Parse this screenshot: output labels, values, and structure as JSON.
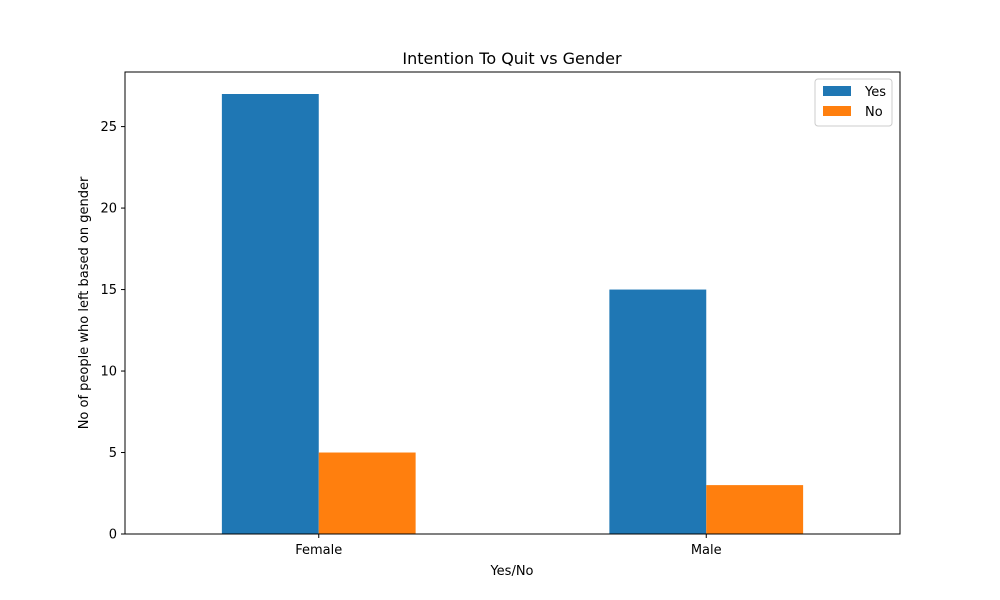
{
  "chart_data": {
    "type": "bar",
    "title": "Intention To Quit  vs Gender",
    "xlabel": "Yes/No",
    "ylabel": "No of people who left based on gender",
    "categories": [
      "Female",
      "Male"
    ],
    "series": [
      {
        "name": "Yes",
        "values": [
          27,
          15
        ],
        "color": "#1f77b4"
      },
      {
        "name": "No",
        "values": [
          5,
          3
        ],
        "color": "#ff7f0e"
      }
    ],
    "ylim": [
      0,
      28.35
    ],
    "yticks": [
      0,
      5,
      10,
      15,
      20,
      25
    ],
    "grid": false,
    "legend_position": "top-right"
  }
}
